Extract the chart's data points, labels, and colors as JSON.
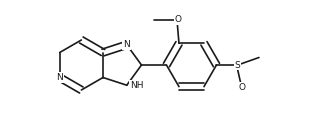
{
  "bg_color": "#ffffff",
  "line_color": "#1a1a1a",
  "line_width": 1.2,
  "font_size": 6.5,
  "fig_width": 3.24,
  "fig_height": 1.3,
  "dpi": 100,
  "xlim": [
    0,
    324
  ],
  "ylim": [
    0,
    130
  ]
}
